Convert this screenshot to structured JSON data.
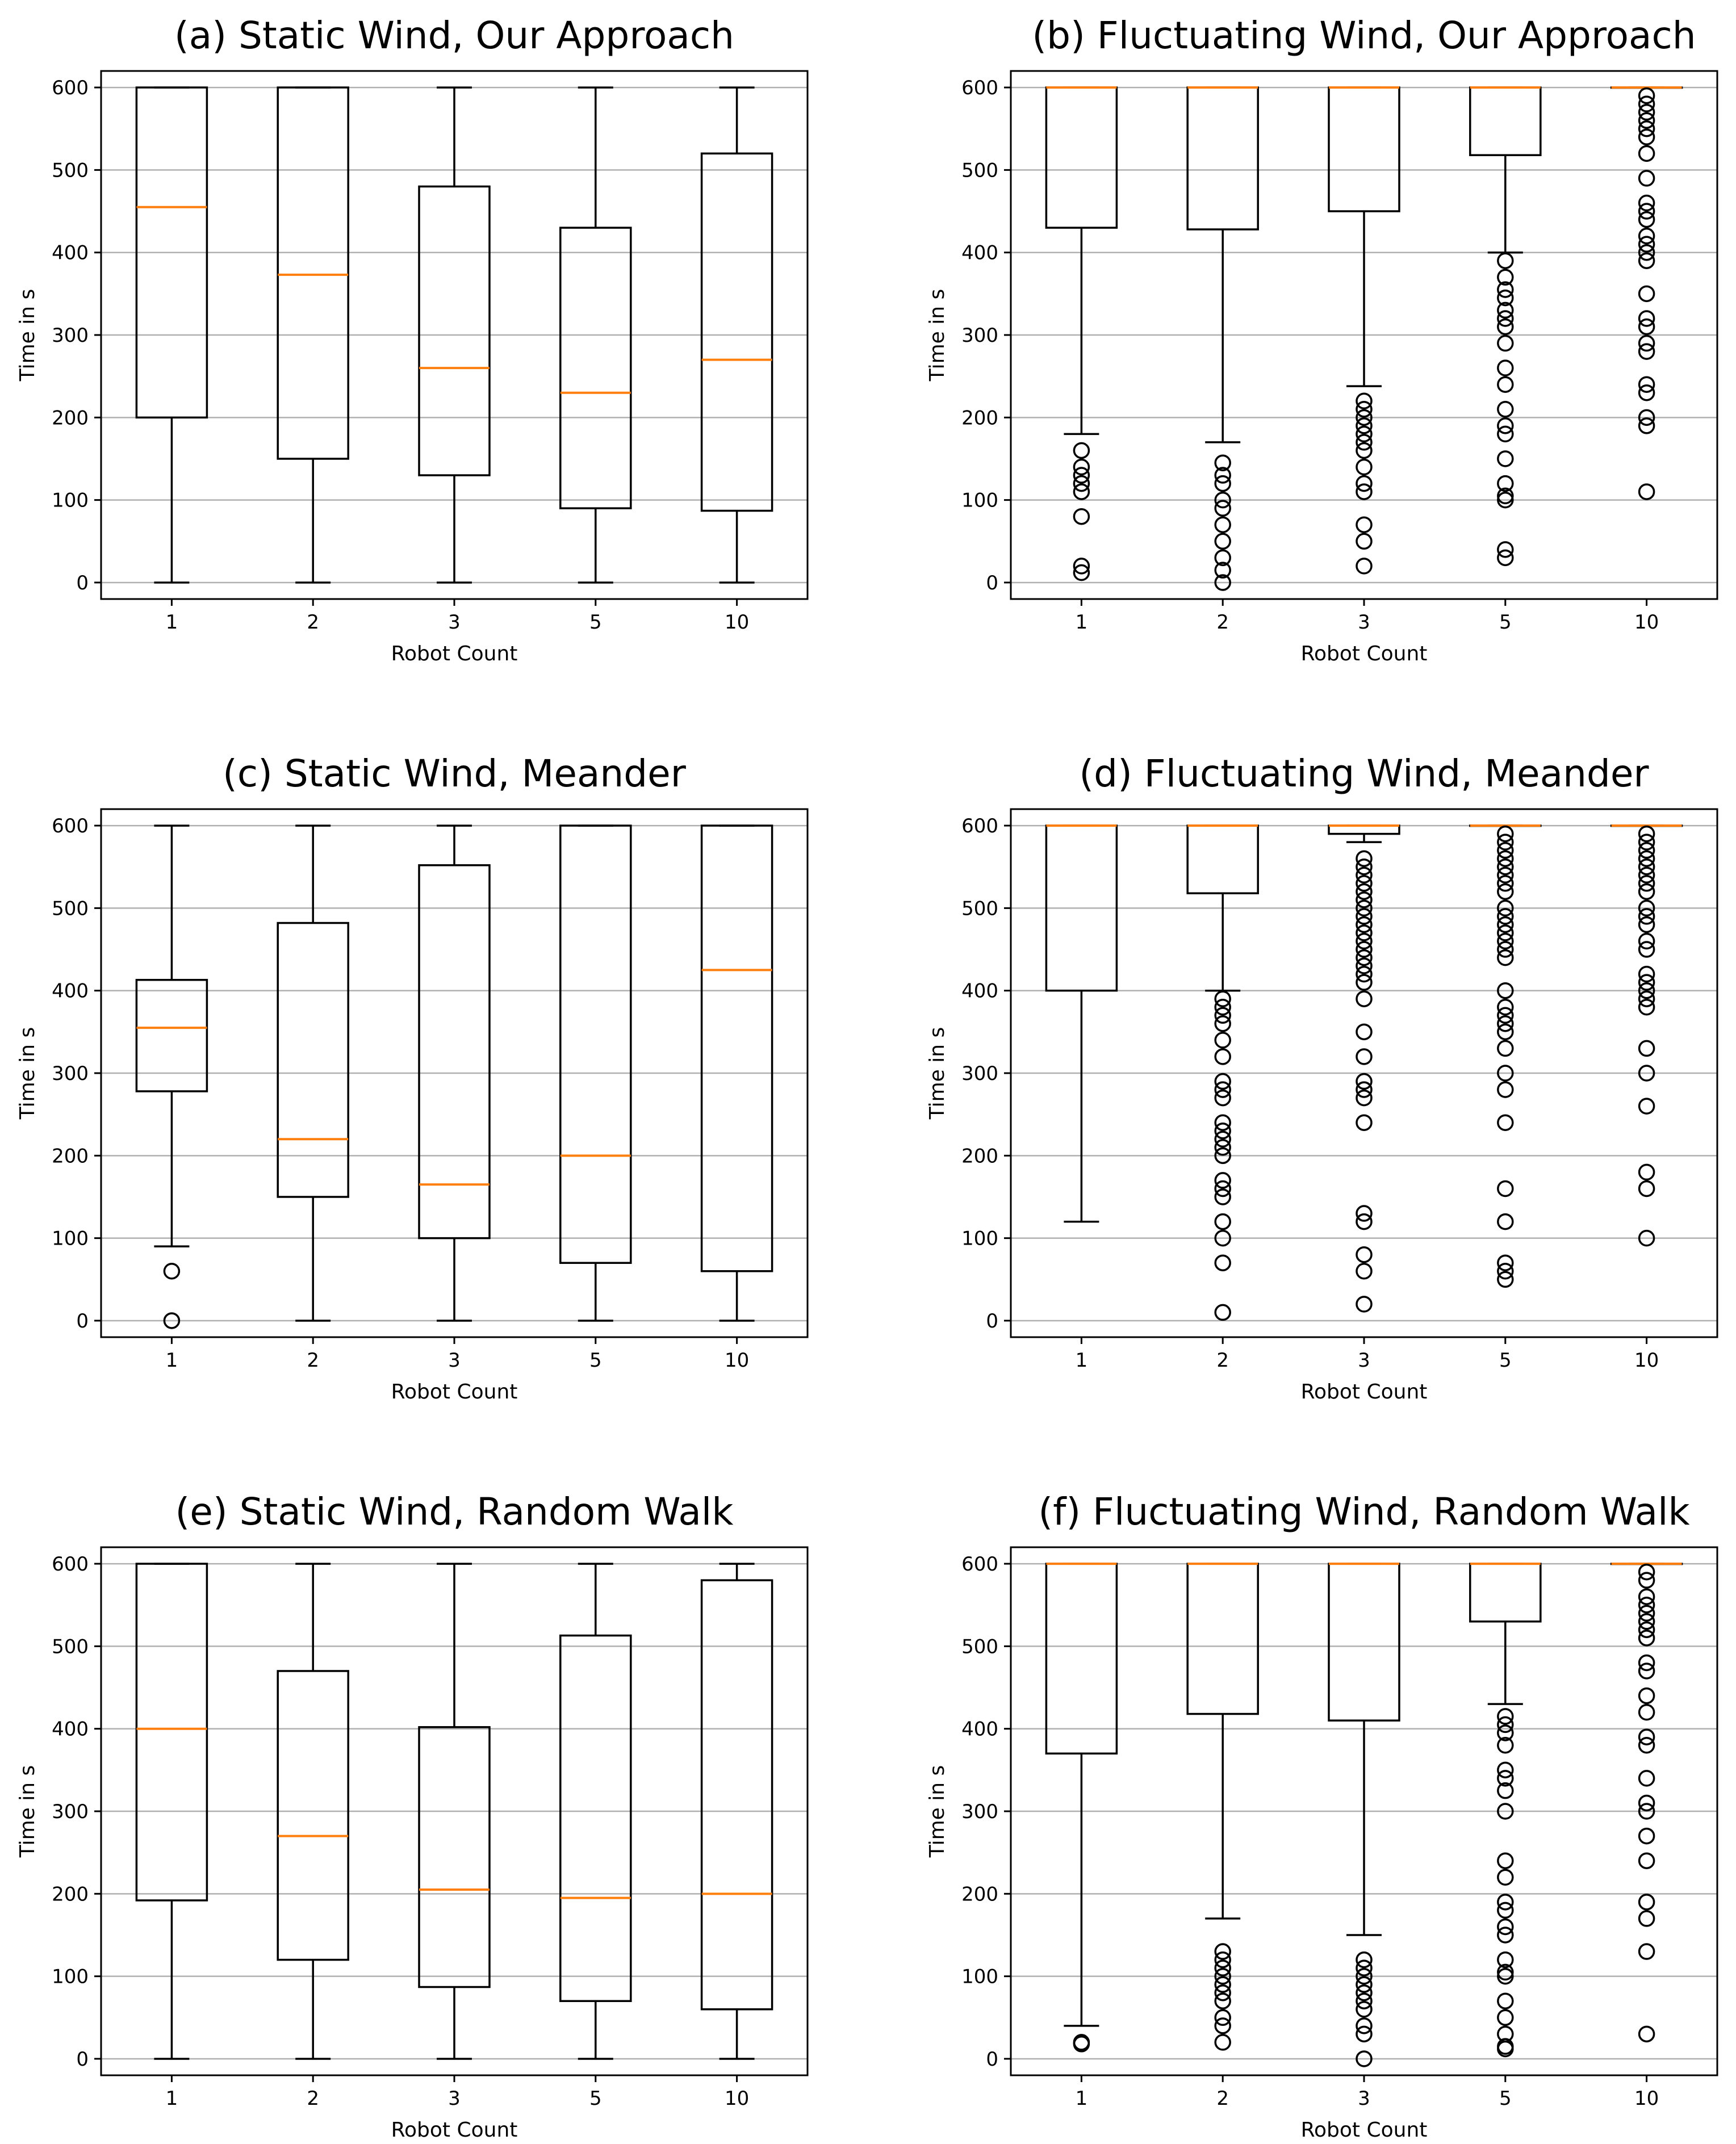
{
  "chart_data": [
    {
      "type": "box",
      "title": "(a) Static Wind, Our Approach",
      "xlabel": "Robot Count",
      "ylabel": "Time in s",
      "ylim": [
        -20,
        620
      ],
      "yticks": [
        0,
        100,
        200,
        300,
        400,
        500,
        600
      ],
      "grid": "y",
      "categories": [
        "1",
        "2",
        "3",
        "5",
        "10"
      ],
      "boxes": [
        {
          "whislo": 0,
          "q1": 200,
          "med": 455,
          "q3": 600,
          "whishi": 600,
          "fliers": []
        },
        {
          "whislo": 0,
          "q1": 150,
          "med": 373,
          "q3": 600,
          "whishi": 600,
          "fliers": []
        },
        {
          "whislo": 0,
          "q1": 130,
          "med": 260,
          "q3": 480,
          "whishi": 600,
          "fliers": []
        },
        {
          "whislo": 0,
          "q1": 90,
          "med": 230,
          "q3": 430,
          "whishi": 600,
          "fliers": []
        },
        {
          "whislo": 0,
          "q1": 87,
          "med": 270,
          "q3": 520,
          "whishi": 600,
          "fliers": []
        }
      ]
    },
    {
      "type": "box",
      "title": "(b) Fluctuating Wind, Our Approach",
      "xlabel": "Robot Count",
      "ylabel": "Time in s",
      "ylim": [
        -20,
        620
      ],
      "yticks": [
        0,
        100,
        200,
        300,
        400,
        500,
        600
      ],
      "grid": "y",
      "categories": [
        "1",
        "2",
        "3",
        "5",
        "10"
      ],
      "boxes": [
        {
          "whislo": 180,
          "q1": 430,
          "med": 600,
          "q3": 600,
          "whishi": 600,
          "fliers": [
            160,
            140,
            130,
            120,
            110,
            80,
            20,
            12
          ]
        },
        {
          "whislo": 170,
          "q1": 428,
          "med": 600,
          "q3": 600,
          "whishi": 600,
          "fliers": [
            145,
            130,
            120,
            100,
            90,
            70,
            50,
            30,
            15,
            0
          ]
        },
        {
          "whislo": 238,
          "q1": 450,
          "med": 600,
          "q3": 600,
          "whishi": 600,
          "fliers": [
            220,
            210,
            200,
            190,
            180,
            170,
            160,
            140,
            120,
            110,
            70,
            50,
            20
          ]
        },
        {
          "whislo": 400,
          "q1": 518,
          "med": 600,
          "q3": 600,
          "whishi": 600,
          "fliers": [
            390,
            370,
            355,
            345,
            330,
            320,
            310,
            290,
            260,
            240,
            210,
            190,
            180,
            150,
            120,
            105,
            100,
            40,
            30
          ]
        },
        {
          "whislo": 600,
          "q1": 600,
          "med": 600,
          "q3": 600,
          "whishi": 600,
          "fliers": [
            590,
            580,
            570,
            560,
            550,
            540,
            520,
            490,
            460,
            450,
            440,
            420,
            410,
            400,
            390,
            350,
            320,
            310,
            290,
            280,
            240,
            230,
            200,
            190,
            110
          ]
        }
      ]
    },
    {
      "type": "box",
      "title": "(c) Static Wind, Meander",
      "xlabel": "Robot Count",
      "ylabel": "Time in s",
      "ylim": [
        -20,
        620
      ],
      "yticks": [
        0,
        100,
        200,
        300,
        400,
        500,
        600
      ],
      "grid": "y",
      "categories": [
        "1",
        "2",
        "3",
        "5",
        "10"
      ],
      "boxes": [
        {
          "whislo": 90,
          "q1": 278,
          "med": 355,
          "q3": 413,
          "whishi": 600,
          "fliers": [
            60,
            0
          ]
        },
        {
          "whislo": 0,
          "q1": 150,
          "med": 220,
          "q3": 482,
          "whishi": 600,
          "fliers": []
        },
        {
          "whislo": 0,
          "q1": 100,
          "med": 165,
          "q3": 552,
          "whishi": 600,
          "fliers": []
        },
        {
          "whislo": 0,
          "q1": 70,
          "med": 200,
          "q3": 600,
          "whishi": 600,
          "fliers": []
        },
        {
          "whislo": 0,
          "q1": 60,
          "med": 425,
          "q3": 600,
          "whishi": 600,
          "fliers": []
        }
      ]
    },
    {
      "type": "box",
      "title": "(d) Fluctuating Wind, Meander",
      "xlabel": "Robot Count",
      "ylabel": "Time in s",
      "ylim": [
        -20,
        620
      ],
      "yticks": [
        0,
        100,
        200,
        300,
        400,
        500,
        600
      ],
      "grid": "y",
      "categories": [
        "1",
        "2",
        "3",
        "5",
        "10"
      ],
      "boxes": [
        {
          "whislo": 120,
          "q1": 400,
          "med": 600,
          "q3": 600,
          "whishi": 600,
          "fliers": []
        },
        {
          "whislo": 400,
          "q1": 518,
          "med": 600,
          "q3": 600,
          "whishi": 600,
          "fliers": [
            390,
            380,
            370,
            360,
            340,
            320,
            290,
            280,
            270,
            240,
            230,
            220,
            210,
            200,
            170,
            160,
            150,
            120,
            100,
            70,
            10
          ]
        },
        {
          "whislo": 580,
          "q1": 590,
          "med": 600,
          "q3": 600,
          "whishi": 600,
          "fliers": [
            560,
            550,
            540,
            530,
            520,
            510,
            500,
            490,
            480,
            470,
            460,
            450,
            440,
            430,
            420,
            410,
            390,
            350,
            320,
            290,
            280,
            270,
            240,
            130,
            120,
            80,
            60,
            20
          ]
        },
        {
          "whislo": 600,
          "q1": 600,
          "med": 600,
          "q3": 600,
          "whishi": 600,
          "fliers": [
            590,
            580,
            570,
            560,
            550,
            540,
            530,
            520,
            500,
            490,
            480,
            470,
            460,
            450,
            440,
            400,
            380,
            370,
            360,
            350,
            330,
            300,
            280,
            240,
            160,
            120,
            70,
            60,
            50
          ]
        },
        {
          "whislo": 600,
          "q1": 600,
          "med": 600,
          "q3": 600,
          "whishi": 600,
          "fliers": [
            590,
            580,
            570,
            560,
            550,
            540,
            530,
            520,
            500,
            490,
            480,
            460,
            450,
            420,
            410,
            400,
            390,
            380,
            330,
            300,
            260,
            180,
            160,
            100
          ]
        }
      ]
    },
    {
      "type": "box",
      "title": "(e) Static Wind, Random Walk",
      "xlabel": "Robot Count",
      "ylabel": "Time in s",
      "ylim": [
        -20,
        620
      ],
      "yticks": [
        0,
        100,
        200,
        300,
        400,
        500,
        600
      ],
      "grid": "y",
      "categories": [
        "1",
        "2",
        "3",
        "5",
        "10"
      ],
      "boxes": [
        {
          "whislo": 0,
          "q1": 192,
          "med": 400,
          "q3": 600,
          "whishi": 600,
          "fliers": []
        },
        {
          "whislo": 0,
          "q1": 120,
          "med": 270,
          "q3": 470,
          "whishi": 600,
          "fliers": []
        },
        {
          "whislo": 0,
          "q1": 87,
          "med": 205,
          "q3": 402,
          "whishi": 600,
          "fliers": []
        },
        {
          "whislo": 0,
          "q1": 70,
          "med": 195,
          "q3": 513,
          "whishi": 600,
          "fliers": []
        },
        {
          "whislo": 0,
          "q1": 60,
          "med": 200,
          "q3": 580,
          "whishi": 600,
          "fliers": []
        }
      ]
    },
    {
      "type": "box",
      "title": "(f) Fluctuating Wind, Random Walk",
      "xlabel": "Robot Count",
      "ylabel": "Time in s",
      "ylim": [
        -20,
        620
      ],
      "yticks": [
        0,
        100,
        200,
        300,
        400,
        500,
        600
      ],
      "grid": "y",
      "categories": [
        "1",
        "2",
        "3",
        "5",
        "10"
      ],
      "boxes": [
        {
          "whislo": 40,
          "q1": 370,
          "med": 600,
          "q3": 600,
          "whishi": 600,
          "fliers": [
            20,
            18
          ]
        },
        {
          "whislo": 170,
          "q1": 418,
          "med": 600,
          "q3": 600,
          "whishi": 600,
          "fliers": [
            130,
            120,
            110,
            100,
            90,
            80,
            70,
            50,
            40,
            20
          ]
        },
        {
          "whislo": 150,
          "q1": 410,
          "med": 600,
          "q3": 600,
          "whishi": 600,
          "fliers": [
            120,
            110,
            100,
            90,
            80,
            70,
            60,
            40,
            30,
            0
          ]
        },
        {
          "whislo": 430,
          "q1": 530,
          "med": 600,
          "q3": 600,
          "whishi": 600,
          "fliers": [
            415,
            405,
            395,
            380,
            350,
            340,
            325,
            300,
            240,
            220,
            190,
            180,
            160,
            150,
            120,
            105,
            100,
            70,
            50,
            30,
            15,
            12
          ]
        },
        {
          "whislo": 600,
          "q1": 600,
          "med": 600,
          "q3": 600,
          "whishi": 600,
          "fliers": [
            590,
            580,
            560,
            550,
            540,
            530,
            520,
            510,
            480,
            470,
            440,
            420,
            390,
            380,
            340,
            310,
            300,
            270,
            240,
            190,
            170,
            130,
            30
          ]
        }
      ]
    }
  ]
}
